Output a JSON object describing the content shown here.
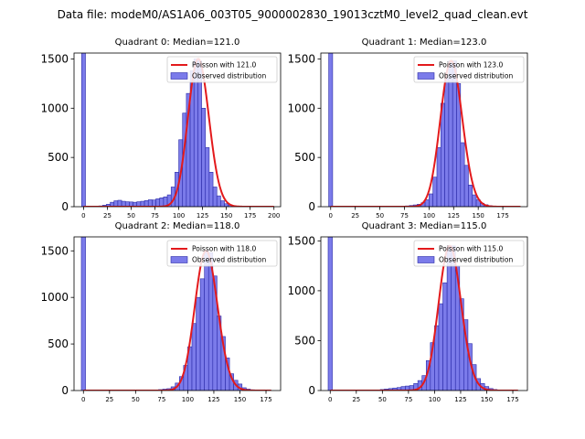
{
  "figure": {
    "suptitle": "Data file: modeM0/AS1A06_003T05_9000002830_19013cztM0_level2_quad_clean.evt"
  },
  "style": {
    "bar_fill": "#7b7bea",
    "bar_edge": "#2a2aa8",
    "curve_color": "#e31a1c",
    "legend_border": "#cccccc"
  },
  "chart_data": [
    {
      "type": "bar",
      "title": "Quadrant 0: Median=121.0",
      "median": 121.0,
      "xlim": [
        -10,
        207
      ],
      "ylim": [
        0,
        1560
      ],
      "xticks": [
        0,
        25,
        50,
        75,
        100,
        125,
        150,
        175,
        200
      ],
      "yticks": [
        0,
        500,
        1000,
        1500
      ],
      "bin_width": 4.0,
      "bar_centers": [
        0,
        14,
        18,
        22,
        26,
        30,
        34,
        38,
        42,
        46,
        50,
        54,
        58,
        62,
        66,
        70,
        74,
        78,
        82,
        86,
        90,
        94,
        98,
        102,
        106,
        110,
        114,
        118,
        122,
        126,
        130,
        134,
        138,
        142,
        146,
        150,
        154,
        158,
        162,
        166
      ],
      "bar_values": [
        1560,
        5,
        8,
        15,
        25,
        45,
        60,
        65,
        55,
        50,
        48,
        45,
        50,
        55,
        62,
        70,
        68,
        80,
        90,
        100,
        120,
        200,
        350,
        680,
        950,
        1150,
        1380,
        1500,
        1480,
        1000,
        600,
        350,
        200,
        110,
        60,
        30,
        15,
        8,
        4,
        2
      ],
      "curve_xrange": [
        0,
        200
      ],
      "legend": [
        {
          "label": "Poisson with 121.0",
          "kind": "line"
        },
        {
          "label": "Observed distribution",
          "kind": "patch"
        }
      ]
    },
    {
      "type": "bar",
      "title": "Quadrant 1: Median=123.0",
      "median": 123.0,
      "xlim": [
        -10,
        200
      ],
      "ylim": [
        0,
        1560
      ],
      "xticks": [
        0,
        25,
        50,
        75,
        100,
        125,
        150,
        175
      ],
      "yticks": [
        0,
        500,
        1000,
        1500
      ],
      "bin_width": 4.0,
      "bar_centers": [
        0,
        74,
        78,
        82,
        86,
        90,
        94,
        98,
        102,
        106,
        110,
        114,
        118,
        122,
        126,
        130,
        134,
        138,
        142,
        146,
        150,
        154,
        158,
        162,
        166,
        170
      ],
      "bar_values": [
        1560,
        5,
        8,
        12,
        18,
        25,
        40,
        70,
        130,
        300,
        600,
        1050,
        1300,
        1480,
        1480,
        1250,
        650,
        420,
        220,
        120,
        70,
        35,
        20,
        10,
        5,
        3
      ],
      "curve_xrange": [
        0,
        193
      ],
      "legend": [
        {
          "label": "Poisson with 123.0",
          "kind": "line"
        },
        {
          "label": "Observed distribution",
          "kind": "patch"
        }
      ]
    },
    {
      "type": "bar",
      "title": "Quadrant 2: Median=118.0",
      "median": 118.0,
      "xlim": [
        -9,
        189
      ],
      "ylim": [
        0,
        1650
      ],
      "xticks": [
        0,
        25,
        50,
        75,
        100,
        125,
        150,
        175
      ],
      "yticks": [
        0,
        500,
        1000,
        1500
      ],
      "bin_width": 4.0,
      "bar_centers": [
        0,
        74,
        78,
        82,
        86,
        90,
        94,
        98,
        102,
        106,
        110,
        114,
        118,
        122,
        126,
        130,
        134,
        138,
        142,
        146,
        150,
        154,
        158,
        162,
        166
      ],
      "bar_values": [
        1650,
        10,
        15,
        20,
        40,
        80,
        150,
        270,
        470,
        720,
        1000,
        1200,
        1500,
        1480,
        1230,
        800,
        580,
        350,
        180,
        110,
        70,
        30,
        15,
        8,
        4
      ],
      "curve_xrange": [
        0,
        180
      ],
      "legend": [
        {
          "label": "Poisson with 118.0",
          "kind": "line"
        },
        {
          "label": "Observed distribution",
          "kind": "patch"
        }
      ]
    },
    {
      "type": "bar",
      "title": "Quadrant 3: Median=115.0",
      "median": 115.0,
      "xlim": [
        -9,
        189
      ],
      "ylim": [
        0,
        1540
      ],
      "xticks": [
        0,
        25,
        50,
        75,
        100,
        125,
        150,
        175
      ],
      "yticks": [
        0,
        500,
        1000,
        1500
      ],
      "bin_width": 4.0,
      "bar_centers": [
        0,
        50,
        54,
        58,
        62,
        66,
        70,
        74,
        78,
        82,
        86,
        90,
        94,
        98,
        102,
        106,
        110,
        114,
        118,
        122,
        126,
        130,
        134,
        138,
        142,
        146,
        150,
        154,
        158,
        162,
        166
      ],
      "bar_values": [
        1540,
        10,
        15,
        20,
        25,
        30,
        40,
        45,
        50,
        70,
        100,
        150,
        300,
        480,
        650,
        870,
        1080,
        1450,
        1450,
        1250,
        920,
        710,
        470,
        260,
        120,
        70,
        40,
        20,
        10,
        6,
        3
      ],
      "curve_xrange": [
        0,
        180
      ],
      "legend": [
        {
          "label": "Poisson with 115.0",
          "kind": "line"
        },
        {
          "label": "Observed distribution",
          "kind": "patch"
        }
      ]
    }
  ]
}
